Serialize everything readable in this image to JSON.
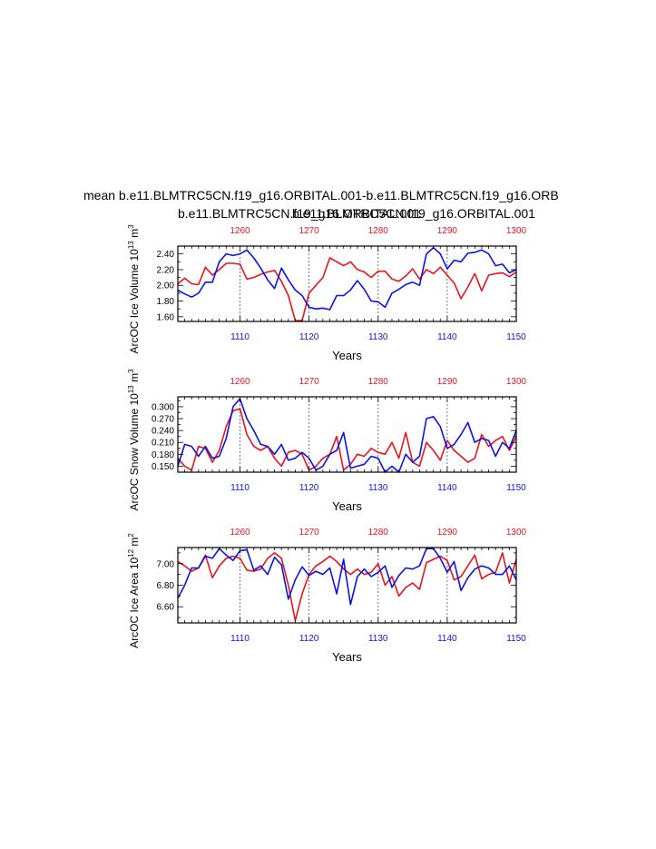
{
  "header": {
    "title": "mean b.e11.BLMTRC5CN.f19_g16.ORBITAL.001-b.e11.BLMTRC5CN.f19_g16.ORB",
    "legend_red": "b.e11.BLMTRC5CN.f19_g16.ORBITAL.001",
    "legend_blue": "b.e11.BLMTRC5CN.f19_g16.ORBITAL.001"
  },
  "colors": {
    "red": "#e8141c",
    "blue": "#0a14e6",
    "axis": "#000000"
  },
  "chart_data": [
    {
      "type": "line",
      "ylabel": "ArcOC Ice Volume 10",
      "ylabel_exp": "13",
      "ylabel_unit": "m",
      "ylabel_unit_exp": "3",
      "xlabel": "Years",
      "ylim": [
        1.54,
        2.5
      ],
      "yticks": [
        "1.60",
        "1.80",
        "2.00",
        "2.20",
        "2.40"
      ],
      "yminor": [
        1.7,
        1.9,
        2.1,
        2.3
      ],
      "x_bottom_ticks": [
        "1110",
        "1120",
        "1130",
        "1140",
        "1150"
      ],
      "x_top_ticks": [
        "1260",
        "1270",
        "1280",
        "1290",
        "1300"
      ],
      "series": [
        {
          "color": "red",
          "x_start": 1251,
          "x_end": 1300,
          "values": [
            2.02,
            2.09,
            2.02,
            2.01,
            2.23,
            2.13,
            2.2,
            2.28,
            2.28,
            2.27,
            2.08,
            2.1,
            2.14,
            2.17,
            2.19,
            2.05,
            1.87,
            1.55,
            1.55,
            1.9,
            2.0,
            2.1,
            2.35,
            2.3,
            2.25,
            2.3,
            2.2,
            2.17,
            2.1,
            2.18,
            2.18,
            2.08,
            2.05,
            2.12,
            2.21,
            2.08,
            2.2,
            2.15,
            2.23,
            2.13,
            2.03,
            1.83,
            1.98,
            2.15,
            1.93,
            2.13,
            2.15,
            2.16,
            2.11,
            2.17
          ]
        },
        {
          "color": "blue",
          "x_start": 1101,
          "x_end": 1150,
          "values": [
            1.94,
            1.89,
            1.85,
            1.9,
            2.04,
            2.04,
            2.3,
            2.4,
            2.38,
            2.4,
            2.45,
            2.35,
            2.22,
            2.07,
            1.96,
            2.22,
            2.07,
            1.94,
            1.87,
            1.72,
            1.7,
            1.71,
            1.69,
            1.87,
            1.87,
            1.94,
            2.06,
            1.95,
            1.8,
            1.79,
            1.72,
            1.9,
            1.95,
            2.01,
            2.04,
            2.0,
            2.4,
            2.48,
            2.4,
            2.21,
            2.32,
            2.3,
            2.41,
            2.42,
            2.45,
            2.4,
            2.25,
            2.27,
            2.16,
            2.2
          ]
        }
      ]
    },
    {
      "type": "line",
      "ylabel": "ArcOC Snow Volume 10",
      "ylabel_exp": "13",
      "ylabel_unit": "m",
      "ylabel_unit_exp": "3",
      "xlabel": "Years",
      "ylim": [
        0.135,
        0.325
      ],
      "yticks": [
        "0.150",
        "0.180",
        "0.210",
        "0.240",
        "0.270",
        "0.300"
      ],
      "yminor": [
        0.165,
        0.195,
        0.225,
        0.255,
        0.285,
        0.315
      ],
      "x_bottom_ticks": [
        "1110",
        "1120",
        "1130",
        "1140",
        "1150"
      ],
      "x_top_ticks": [
        "1260",
        "1270",
        "1280",
        "1290",
        "1300"
      ],
      "series": [
        {
          "color": "red",
          "x_start": 1251,
          "x_end": 1300,
          "values": [
            0.17,
            0.15,
            0.14,
            0.2,
            0.195,
            0.16,
            0.19,
            0.25,
            0.29,
            0.295,
            0.23,
            0.2,
            0.19,
            0.2,
            0.17,
            0.15,
            0.185,
            0.19,
            0.18,
            0.14,
            0.15,
            0.17,
            0.18,
            0.225,
            0.14,
            0.155,
            0.18,
            0.175,
            0.195,
            0.185,
            0.18,
            0.21,
            0.17,
            0.235,
            0.16,
            0.15,
            0.21,
            0.19,
            0.165,
            0.215,
            0.19,
            0.175,
            0.16,
            0.17,
            0.23,
            0.2,
            0.215,
            0.225,
            0.19,
            0.225
          ]
        },
        {
          "color": "blue",
          "x_start": 1101,
          "x_end": 1150,
          "values": [
            0.15,
            0.205,
            0.2,
            0.175,
            0.2,
            0.17,
            0.175,
            0.22,
            0.3,
            0.32,
            0.27,
            0.24,
            0.205,
            0.2,
            0.18,
            0.205,
            0.165,
            0.17,
            0.185,
            0.17,
            0.14,
            0.15,
            0.18,
            0.19,
            0.235,
            0.145,
            0.15,
            0.155,
            0.175,
            0.17,
            0.13,
            0.15,
            0.13,
            0.18,
            0.16,
            0.175,
            0.27,
            0.275,
            0.25,
            0.195,
            0.205,
            0.23,
            0.26,
            0.21,
            0.22,
            0.215,
            0.175,
            0.21,
            0.195,
            0.24
          ]
        }
      ]
    },
    {
      "type": "line",
      "ylabel": "ArcOC Ice Area 10",
      "ylabel_exp": "12",
      "ylabel_unit": "m",
      "ylabel_unit_exp": "2",
      "xlabel": "Years",
      "ylim": [
        6.45,
        7.15
      ],
      "yticks": [
        "6.60",
        "6.80",
        "7.00"
      ],
      "yminor": [
        6.5,
        6.7,
        6.9,
        7.1
      ],
      "x_bottom_ticks": [
        "1110",
        "1120",
        "1130",
        "1140",
        "1150"
      ],
      "x_top_ticks": [
        "1260",
        "1270",
        "1280",
        "1290",
        "1300"
      ],
      "series": [
        {
          "color": "red",
          "x_start": 1251,
          "x_end": 1300,
          "values": [
            7.02,
            6.98,
            6.93,
            6.96,
            7.08,
            6.87,
            6.98,
            7.05,
            7.07,
            7.05,
            6.94,
            6.93,
            6.95,
            7.05,
            7.1,
            7.05,
            6.8,
            6.47,
            6.72,
            6.9,
            6.98,
            7.02,
            7.07,
            7.02,
            6.95,
            6.9,
            6.95,
            6.9,
            6.92,
            7.0,
            6.8,
            6.88,
            6.7,
            6.78,
            6.82,
            6.76,
            7.01,
            7.04,
            7.07,
            7.03,
            6.85,
            6.88,
            6.98,
            7.08,
            6.86,
            6.9,
            6.92,
            7.1,
            6.82,
            7.04
          ]
        },
        {
          "color": "blue",
          "x_start": 1101,
          "x_end": 1150,
          "values": [
            6.68,
            6.8,
            6.96,
            6.96,
            7.07,
            7.05,
            7.14,
            7.08,
            7.03,
            7.12,
            7.13,
            6.94,
            6.98,
            6.9,
            7.06,
            6.99,
            6.67,
            6.85,
            6.97,
            6.89,
            6.93,
            6.9,
            6.96,
            6.72,
            7.04,
            6.62,
            6.88,
            6.95,
            6.88,
            6.92,
            6.98,
            6.78,
            6.89,
            6.96,
            6.95,
            6.98,
            7.14,
            7.14,
            7.05,
            6.92,
            7.02,
            6.75,
            6.87,
            6.95,
            6.98,
            6.96,
            6.9,
            6.9,
            6.98,
            6.85
          ]
        }
      ]
    }
  ]
}
